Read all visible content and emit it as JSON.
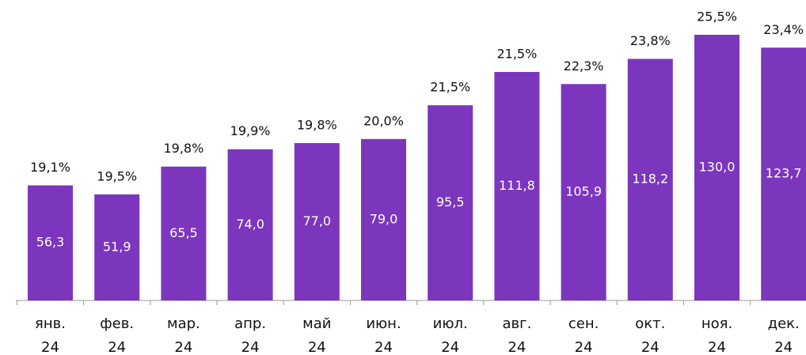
{
  "chart_data": {
    "type": "bar",
    "categories": [
      "янв. 24",
      "фев. 24",
      "мар. 24",
      "апр. 24",
      "май 24",
      "июн. 24",
      "июл. 24",
      "авг. 24",
      "сен. 24",
      "окт. 24",
      "ноя. 24",
      "дек. 24"
    ],
    "values": [
      56.3,
      51.9,
      65.5,
      74.0,
      77.0,
      79.0,
      95.5,
      111.8,
      105.9,
      118.2,
      130.0,
      123.7
    ],
    "value_labels": [
      "56,3",
      "51,9",
      "65,5",
      "74,0",
      "77,0",
      "79,0",
      "95,5",
      "111,8",
      "105,9",
      "118,2",
      "130,0",
      "123,7"
    ],
    "share_values": [
      19.1,
      19.5,
      19.8,
      19.9,
      19.8,
      20.0,
      21.5,
      21.5,
      22.3,
      23.8,
      25.5,
      23.4
    ],
    "share_labels": [
      "19,1%",
      "19,5%",
      "19,8%",
      "19,9%",
      "19,8%",
      "20,0%",
      "21,5%",
      "21,5%",
      "22,3%",
      "23,8%",
      "25,5%",
      "23,4%"
    ],
    "color": "#7b36bd",
    "ylim": [
      0,
      130
    ]
  }
}
